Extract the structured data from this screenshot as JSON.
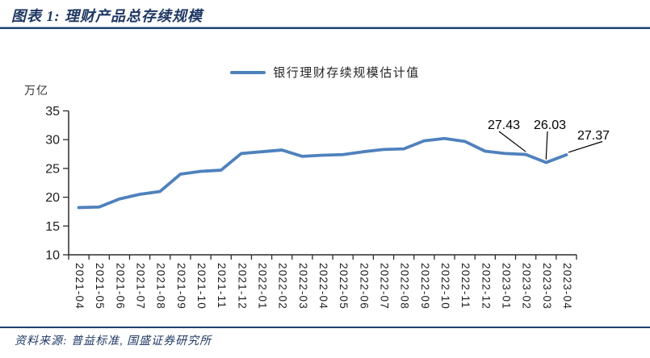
{
  "header": {
    "title": "图表 1: 理财产品总存续规模"
  },
  "legend": {
    "label": "银行理财存续规模估计值"
  },
  "footer": {
    "source": "资料来源: 普益标准, 国盛证券研究所"
  },
  "colors": {
    "navy": "#1F3864",
    "rule": "#1F3E6E",
    "line": "#4F81BD",
    "axis": "#2b2b2b",
    "tick_text": "#1f1f1f",
    "annotation": "#000000"
  },
  "chart_data": {
    "type": "line",
    "title": "理财产品总存续规模",
    "ylabel": "万亿",
    "xlabel": "",
    "ylim": [
      10,
      35
    ],
    "yticks": [
      10,
      15,
      20,
      25,
      30,
      35
    ],
    "grid": false,
    "legend_position": "top-center",
    "categories": [
      "2021-04",
      "2021-05",
      "2021-06",
      "2021-07",
      "2021-08",
      "2021-09",
      "2021-10",
      "2021-11",
      "2021-12",
      "2022-01",
      "2022-02",
      "2022-03",
      "2022-04",
      "2022-05",
      "2022-06",
      "2022-07",
      "2022-08",
      "2022-09",
      "2022-10",
      "2022-11",
      "2022-12",
      "2023-01",
      "2023-02",
      "2023-03",
      "2023-04"
    ],
    "series": [
      {
        "name": "银行理财存续规模估计值",
        "values": [
          18.2,
          18.3,
          19.7,
          20.5,
          21.0,
          24.0,
          24.5,
          24.7,
          27.6,
          27.9,
          28.2,
          27.1,
          27.3,
          27.4,
          27.9,
          28.3,
          28.4,
          29.8,
          30.2,
          29.7,
          28.0,
          27.6,
          27.43,
          26.03,
          27.37
        ]
      }
    ],
    "annotations": [
      {
        "category": "2023-02",
        "value": 27.43,
        "label": "27.43"
      },
      {
        "category": "2023-03",
        "value": 26.03,
        "label": "26.03"
      },
      {
        "category": "2023-04",
        "value": 27.37,
        "label": "27.37"
      }
    ]
  }
}
